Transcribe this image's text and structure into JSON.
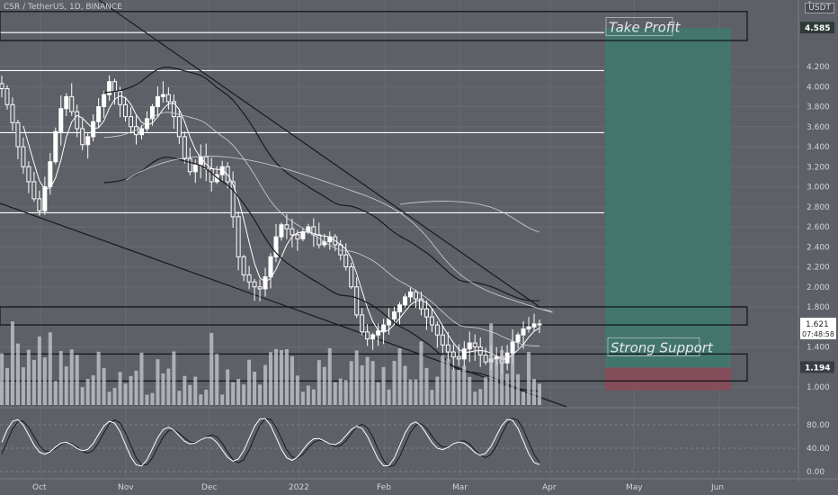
{
  "header": {
    "pair_title": "CSR / TetherUS, 1D, BINANCE",
    "currency_badge": "USDT"
  },
  "zones": {
    "take_profit_label": "Take Profit",
    "strong_support_label": "Strong Support"
  },
  "price_badges": {
    "take_profit": "4.585",
    "current_price": "1.621",
    "countdown": "07:48:58",
    "support": "1.194"
  },
  "colors": {
    "background": "#5e6068",
    "profit_zone": "#3d7a6e",
    "loss_zone": "#8b4a57",
    "candle": "#ffffff",
    "accent_badge": "#1f2124"
  },
  "chart_data": {
    "type": "candlestick",
    "price_axis_ticks": [
      "4.200",
      "4.000",
      "3.800",
      "3.600",
      "3.400",
      "3.200",
      "3.000",
      "2.800",
      "2.600",
      "2.400",
      "2.200",
      "2.000",
      "1.800",
      "1.400",
      "1.000"
    ],
    "price_axis_top_label": "4",
    "time_axis_labels": [
      "Oct",
      "Nov",
      "Dec",
      "2022",
      "Feb",
      "Mar",
      "Apr",
      "May",
      "Jun"
    ],
    "oscillator_ticks": [
      "80.00",
      "40.00",
      "0.00"
    ],
    "horizontal_levels": [
      4.54,
      4.16,
      3.54,
      2.74
    ],
    "zones": [
      {
        "name": "take-profit-box",
        "from": 4.46,
        "to": 4.75
      },
      {
        "name": "resistance-box",
        "from": 1.62,
        "to": 1.8
      },
      {
        "name": "strong-support-box",
        "from": 1.06,
        "to": 1.33
      }
    ],
    "position": {
      "entry": 1.194,
      "target": 4.585,
      "stop": 0.97
    },
    "closes": [
      3.98,
      3.82,
      3.64,
      3.4,
      3.2,
      3.05,
      2.88,
      2.76,
      3.0,
      3.25,
      3.55,
      3.78,
      3.9,
      3.75,
      3.58,
      3.42,
      3.5,
      3.65,
      3.8,
      3.92,
      4.05,
      3.95,
      3.82,
      3.7,
      3.6,
      3.52,
      3.58,
      3.68,
      3.8,
      3.9,
      3.92,
      3.85,
      3.7,
      3.5,
      3.28,
      3.15,
      3.22,
      3.3,
      3.18,
      3.05,
      3.12,
      3.2,
      3.05,
      2.7,
      2.3,
      2.12,
      2.05,
      2.0,
      1.98,
      2.1,
      2.3,
      2.5,
      2.62,
      2.58,
      2.52,
      2.48,
      2.55,
      2.6,
      2.52,
      2.42,
      2.45,
      2.5,
      2.42,
      2.32,
      2.2,
      2.0,
      1.72,
      1.55,
      1.48,
      1.52,
      1.56,
      1.62,
      1.68,
      1.75,
      1.82,
      1.9,
      1.95,
      1.88,
      1.78,
      1.7,
      1.62,
      1.52,
      1.42,
      1.35,
      1.3,
      1.28,
      1.38,
      1.44,
      1.4,
      1.32,
      1.25,
      1.28,
      1.3,
      1.24,
      1.34,
      1.45,
      1.52,
      1.58,
      1.6,
      1.63,
      1.62
    ]
  }
}
